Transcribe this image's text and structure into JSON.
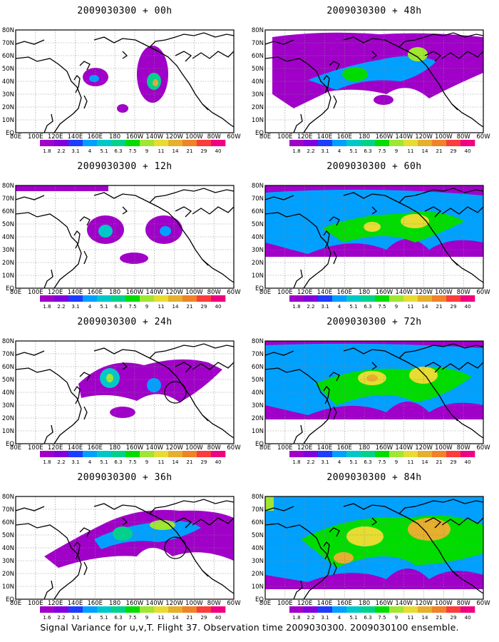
{
  "footer": "Signal Variance for u,v,T. Flight 37. Observation time 2009030300. 2009030100 ensemble.",
  "lon_labels": [
    "80E",
    "100E",
    "120E",
    "140E",
    "160E",
    "180",
    "160W",
    "140W",
    "120W",
    "100W",
    "80W",
    "60W"
  ],
  "lat_labels": [
    "EQ",
    "10N",
    "20N",
    "30N",
    "40N",
    "50N",
    "60N",
    "70N",
    "80N"
  ],
  "colorbar": {
    "labels": [
      "1.8",
      "2.2",
      "3.1",
      "4",
      "5.1",
      "6.3",
      "7.5",
      "9",
      "11",
      "14",
      "21",
      "29",
      "40"
    ],
    "labels_alt": [
      "1.6",
      "2.2",
      "3.1",
      "4",
      "5.1",
      "6.3",
      "7.5",
      "9",
      "11",
      "14",
      "21",
      "29",
      "40"
    ],
    "colors": [
      "#a000c8",
      "#8200dc",
      "#1e3cff",
      "#00a0ff",
      "#00c8c8",
      "#00d28c",
      "#00dc00",
      "#a0e632",
      "#e6dc32",
      "#e6af2d",
      "#f08228",
      "#fa3c3c",
      "#f00082"
    ]
  },
  "panels": [
    {
      "id": "00h",
      "title": "2009030300 + 00h",
      "circle": false,
      "colorbar_labels": "labels"
    },
    {
      "id": "48h",
      "title": "2009030300 + 48h",
      "circle": false,
      "colorbar_labels": "labels"
    },
    {
      "id": "12h",
      "title": "2009030300 + 12h",
      "circle": false,
      "colorbar_labels": "labels"
    },
    {
      "id": "60h",
      "title": "2009030300 + 60h",
      "circle": false,
      "colorbar_labels": "labels"
    },
    {
      "id": "24h",
      "title": "2009030300 + 24h",
      "circle": true,
      "colorbar_labels": "labels"
    },
    {
      "id": "72h",
      "title": "2009030300 + 72h",
      "circle": false,
      "colorbar_labels": "labels"
    },
    {
      "id": "36h",
      "title": "2009030300 + 36h",
      "circle": true,
      "colorbar_labels": "labels_alt"
    },
    {
      "id": "84h",
      "title": "2009030300 + 84h",
      "circle": false,
      "colorbar_labels": "labels"
    }
  ]
}
